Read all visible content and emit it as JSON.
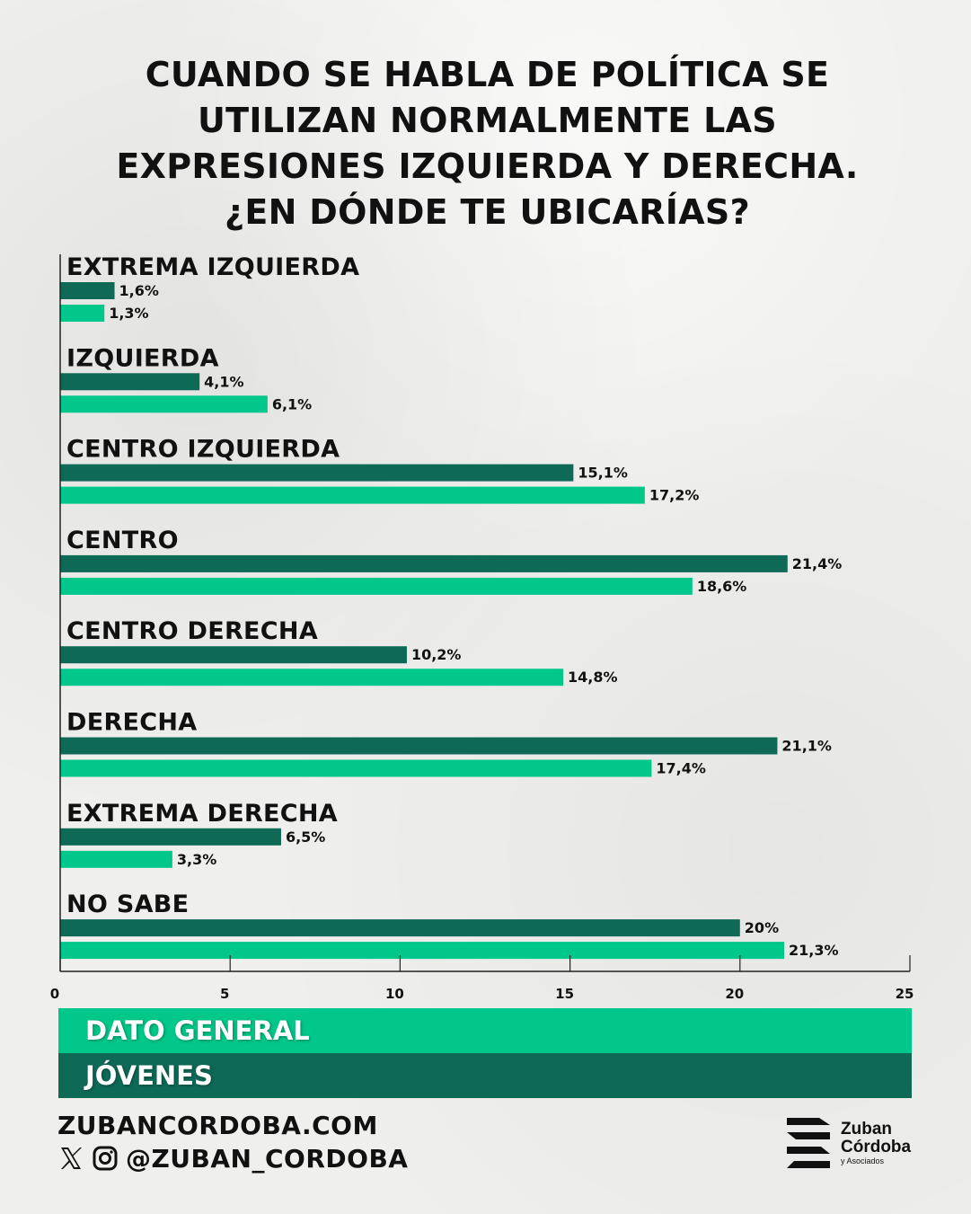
{
  "title_lines": [
    "CUANDO SE HABLA DE POLÍTICA SE",
    "UTILIZAN NORMALMENTE LAS",
    "EXPRESIONES IZQUIERDA Y DERECHA.",
    "¿EN DÓNDE TE UBICARÍAS?"
  ],
  "chart_data": {
    "type": "bar",
    "orientation": "horizontal",
    "categories": [
      "EXTREMA IZQUIERDA",
      "IZQUIERDA",
      "CENTRO IZQUIERDA",
      "CENTRO",
      "CENTRO DERECHA",
      "DERECHA",
      "EXTREMA DERECHA",
      "NO SABE"
    ],
    "series": [
      {
        "name": "JÓVENES",
        "color": "#0e6a55",
        "values": [
          1.6,
          4.1,
          15.1,
          21.4,
          10.2,
          21.1,
          6.5,
          20
        ],
        "labels": [
          "1,6%",
          "4,1%",
          "15,1%",
          "21,4%",
          "10,2%",
          "21,1%",
          "6,5%",
          "20%"
        ]
      },
      {
        "name": "DATO GENERAL",
        "color": "#00c88a",
        "values": [
          1.3,
          6.1,
          17.2,
          18.6,
          14.8,
          17.4,
          3.3,
          21.3
        ],
        "labels": [
          "1,3%",
          "6,1%",
          "17,2%",
          "18,6%",
          "14,8%",
          "17,4%",
          "3,3%",
          "21,3%"
        ]
      }
    ],
    "xlim": [
      0,
      25
    ],
    "xticks": [
      "0",
      "5",
      "10",
      "15",
      "20",
      "25"
    ],
    "grid": false,
    "legend_position": "bottom"
  },
  "legend": [
    {
      "label": "DATO GENERAL",
      "color": "#00c88a"
    },
    {
      "label": "JÓVENES",
      "color": "#0e6a55"
    }
  ],
  "footer": {
    "website": "ZUBANCORDOBA.COM",
    "social_handle": "@ZUBAN_CORDOBA",
    "icons": [
      "x-icon",
      "instagram-icon"
    ]
  },
  "logo": {
    "line1": "Zuban",
    "line2": "Córdoba",
    "line3": "y Asociados"
  }
}
